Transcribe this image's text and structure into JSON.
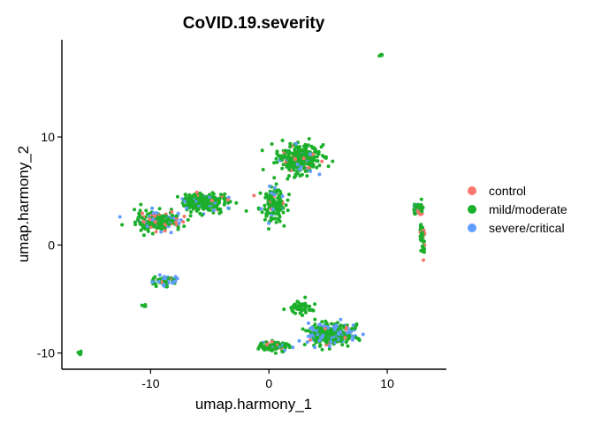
{
  "chart_data": {
    "type": "scatter",
    "title": "CoVID.19.severity",
    "xlabel": "umap.harmony_1",
    "ylabel": "umap.harmony_2",
    "xlim": [
      -17,
      5
    ],
    "ylim": [
      -11.5,
      19
    ],
    "xticks": [
      -10,
      0,
      10
    ],
    "yticks": [
      -10,
      0,
      10
    ],
    "xlim_plot": [
      -17.5,
      15
    ],
    "grid": false,
    "legend_position": "right",
    "series": [
      {
        "name": "control",
        "color": "#F8766D"
      },
      {
        "name": "mild/moderate",
        "color": "#1CAF2B"
      },
      {
        "name": "severe/critical",
        "color": "#619CFF"
      }
    ],
    "clusters": [
      {
        "center": [
          2.5,
          8.0
        ],
        "spread": [
          1.6,
          1.2
        ],
        "n": 320,
        "mix": [
          0.06,
          0.84,
          0.1
        ]
      },
      {
        "center": [
          0.3,
          3.8
        ],
        "spread": [
          1.0,
          1.4
        ],
        "n": 170,
        "mix": [
          0.1,
          0.8,
          0.1
        ]
      },
      {
        "center": [
          -5.5,
          4.0
        ],
        "spread": [
          1.8,
          0.7
        ],
        "n": 260,
        "mix": [
          0.05,
          0.88,
          0.07
        ]
      },
      {
        "center": [
          -9.3,
          2.2
        ],
        "spread": [
          1.8,
          0.8
        ],
        "n": 230,
        "mix": [
          0.1,
          0.72,
          0.18
        ]
      },
      {
        "center": [
          -8.7,
          -3.3
        ],
        "spread": [
          0.8,
          0.4
        ],
        "n": 70,
        "mix": [
          0.05,
          0.55,
          0.4
        ]
      },
      {
        "center": [
          -10.5,
          -5.6
        ],
        "spread": [
          0.2,
          0.15
        ],
        "n": 8,
        "mix": [
          0.0,
          1.0,
          0.0
        ]
      },
      {
        "center": [
          -16.0,
          -10.0
        ],
        "spread": [
          0.1,
          0.15
        ],
        "n": 6,
        "mix": [
          0.0,
          1.0,
          0.0
        ]
      },
      {
        "center": [
          9.5,
          17.6
        ],
        "spread": [
          0.12,
          0.12
        ],
        "n": 6,
        "mix": [
          0.0,
          1.0,
          0.0
        ]
      },
      {
        "center": [
          12.6,
          3.3
        ],
        "spread": [
          0.4,
          0.5
        ],
        "n": 50,
        "mix": [
          0.1,
          0.85,
          0.05
        ]
      },
      {
        "center": [
          13.0,
          0.5
        ],
        "spread": [
          0.2,
          1.3
        ],
        "n": 40,
        "mix": [
          0.3,
          0.7,
          0.0
        ]
      },
      {
        "center": [
          5.2,
          -8.3
        ],
        "spread": [
          1.6,
          0.9
        ],
        "n": 420,
        "mix": [
          0.05,
          0.65,
          0.3
        ]
      },
      {
        "center": [
          0.5,
          -9.4
        ],
        "spread": [
          1.2,
          0.4
        ],
        "n": 90,
        "mix": [
          0.1,
          0.85,
          0.05
        ]
      },
      {
        "center": [
          2.5,
          -5.8
        ],
        "spread": [
          1.0,
          0.6
        ],
        "n": 50,
        "mix": [
          0.0,
          1.0,
          0.0
        ]
      }
    ]
  }
}
